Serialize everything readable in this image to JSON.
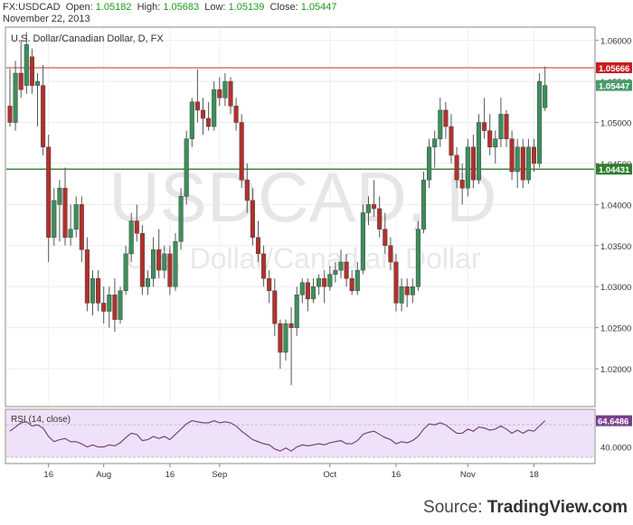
{
  "header": {
    "symbol": "FX:USDCAD",
    "open_label": "Open:",
    "open": "1.05182",
    "high_label": "High:",
    "high": "1.05683",
    "low_label": "Low:",
    "low": "1.05139",
    "close_label": "Close:",
    "close": "1.05447",
    "date": "November 22, 2013"
  },
  "source": {
    "prefix": "Source: ",
    "name": "TradingView.com"
  },
  "colors": {
    "up": "#3c8f5a",
    "down": "#b3312c",
    "wick": "#555555",
    "resistance": "#d9534f",
    "support": "#2f7d2f",
    "rsi_line": "#6a3a7a",
    "rsi_bg": "#efe1f7"
  },
  "chart_data": {
    "type": "candlestick",
    "title": "U.S. Dollar/Canadian Dollar, D, FX",
    "watermark_symbol": "USDCAD, D",
    "watermark_name": "U.S. Dollar/Canadian Dollar",
    "y_ticks": [
      "1.06000",
      "1.05500",
      "1.05000",
      "1.04500",
      "1.04000",
      "1.03500",
      "1.03000",
      "1.02500",
      "1.02000"
    ],
    "ylim": [
      1.0155,
      1.0615
    ],
    "x_tick_labels": [
      "16",
      "Aug",
      "16",
      "Sep",
      "Oct",
      "16",
      "Nov",
      "18"
    ],
    "x_tick_index": [
      7,
      17,
      29,
      38,
      58,
      70,
      83,
      95
    ],
    "horizontal_lines": [
      {
        "value": 1.05666,
        "label": "1.05666",
        "role": "resistance"
      },
      {
        "value": 1.04431,
        "label": "1.04431",
        "role": "support"
      }
    ],
    "last_price_label": "1.05447",
    "candles": [
      [
        1.052,
        1.0565,
        1.0495,
        1.05
      ],
      [
        1.05,
        1.0575,
        1.049,
        1.056
      ],
      [
        1.056,
        1.06,
        1.053,
        1.054
      ],
      [
        1.0545,
        1.061,
        1.0535,
        1.0595
      ],
      [
        1.058,
        1.059,
        1.0535,
        1.0545
      ],
      [
        1.0545,
        1.056,
        1.0495,
        1.055
      ],
      [
        1.0545,
        1.057,
        1.046,
        1.047
      ],
      [
        1.047,
        1.0485,
        1.033,
        1.036
      ],
      [
        1.036,
        1.042,
        1.035,
        1.0405
      ],
      [
        1.04,
        1.043,
        1.0355,
        1.042
      ],
      [
        1.042,
        1.0445,
        1.035,
        1.036
      ],
      [
        1.036,
        1.04,
        1.035,
        1.037
      ],
      [
        1.037,
        1.041,
        1.036,
        1.04
      ],
      [
        1.04,
        1.041,
        1.033,
        1.0345
      ],
      [
        1.0345,
        1.036,
        1.027,
        1.028
      ],
      [
        1.028,
        1.032,
        1.0265,
        1.031
      ],
      [
        1.031,
        1.032,
        1.027,
        1.028
      ],
      [
        1.028,
        1.03,
        1.0255,
        1.027
      ],
      [
        1.027,
        1.03,
        1.025,
        1.029
      ],
      [
        1.029,
        1.031,
        1.0245,
        1.026
      ],
      [
        1.026,
        1.03,
        1.0255,
        1.0295
      ],
      [
        1.0295,
        1.035,
        1.029,
        1.034
      ],
      [
        1.034,
        1.039,
        1.033,
        1.038
      ],
      [
        1.038,
        1.04,
        1.0355,
        1.0365
      ],
      [
        1.0365,
        1.0375,
        1.029,
        1.03
      ],
      [
        1.03,
        1.032,
        1.029,
        1.031
      ],
      [
        1.031,
        1.036,
        1.03,
        1.0345
      ],
      [
        1.0345,
        1.037,
        1.031,
        1.032
      ],
      [
        1.032,
        1.035,
        1.031,
        1.034
      ],
      [
        1.034,
        1.035,
        1.029,
        1.03
      ],
      [
        1.03,
        1.0365,
        1.0295,
        1.0355
      ],
      [
        1.0355,
        1.042,
        1.0345,
        1.041
      ],
      [
        1.041,
        1.049,
        1.04,
        1.048
      ],
      [
        1.048,
        1.053,
        1.047,
        1.0525
      ],
      [
        1.0525,
        1.0565,
        1.05,
        1.0515
      ],
      [
        1.0515,
        1.053,
        1.0485,
        1.0505
      ],
      [
        1.0505,
        1.0525,
        1.049,
        1.0495
      ],
      [
        1.0495,
        1.055,
        1.049,
        1.054
      ],
      [
        1.054,
        1.0555,
        1.052,
        1.053
      ],
      [
        1.053,
        1.056,
        1.052,
        1.055
      ],
      [
        1.055,
        1.0555,
        1.051,
        1.052
      ],
      [
        1.052,
        1.053,
        1.049,
        1.05
      ],
      [
        1.05,
        1.051,
        1.042,
        1.043
      ],
      [
        1.043,
        1.045,
        1.039,
        1.0405
      ],
      [
        1.0405,
        1.042,
        1.035,
        1.036
      ],
      [
        1.036,
        1.038,
        1.033,
        1.034
      ],
      [
        1.034,
        1.035,
        1.03,
        1.031
      ],
      [
        1.031,
        1.032,
        1.028,
        1.0295
      ],
      [
        1.0295,
        1.031,
        1.024,
        1.0255
      ],
      [
        1.0255,
        1.026,
        1.02,
        1.022
      ],
      [
        1.022,
        1.026,
        1.021,
        1.0255
      ],
      [
        1.0255,
        1.0275,
        1.018,
        1.025
      ],
      [
        1.025,
        1.03,
        1.024,
        1.029
      ],
      [
        1.029,
        1.031,
        1.028,
        1.0305
      ],
      [
        1.0305,
        1.031,
        1.027,
        1.0285
      ],
      [
        1.0285,
        1.031,
        1.028,
        1.03
      ],
      [
        1.03,
        1.0315,
        1.029,
        1.031
      ],
      [
        1.031,
        1.032,
        1.028,
        1.03
      ],
      [
        1.03,
        1.0325,
        1.0295,
        1.0315
      ],
      [
        1.0315,
        1.033,
        1.0305,
        1.032
      ],
      [
        1.032,
        1.0345,
        1.031,
        1.033
      ],
      [
        1.033,
        1.034,
        1.03,
        1.031
      ],
      [
        1.031,
        1.032,
        1.029,
        1.0295
      ],
      [
        1.0295,
        1.033,
        1.029,
        1.032
      ],
      [
        1.032,
        1.04,
        1.0315,
        1.039
      ],
      [
        1.039,
        1.041,
        1.0375,
        1.04
      ],
      [
        1.04,
        1.043,
        1.0385,
        1.0395
      ],
      [
        1.0395,
        1.041,
        1.036,
        1.037
      ],
      [
        1.037,
        1.039,
        1.034,
        1.035
      ],
      [
        1.035,
        1.036,
        1.032,
        1.033
      ],
      [
        1.033,
        1.034,
        1.027,
        1.028
      ],
      [
        1.028,
        1.031,
        1.027,
        1.03
      ],
      [
        1.03,
        1.031,
        1.0275,
        1.029
      ],
      [
        1.029,
        1.031,
        1.028,
        1.03
      ],
      [
        1.03,
        1.038,
        1.0295,
        1.037
      ],
      [
        1.037,
        1.044,
        1.0365,
        1.043
      ],
      [
        1.043,
        1.048,
        1.042,
        1.047
      ],
      [
        1.047,
        1.049,
        1.0445,
        1.048
      ],
      [
        1.048,
        1.053,
        1.047,
        1.0515
      ],
      [
        1.0515,
        1.0525,
        1.048,
        1.0495
      ],
      [
        1.0495,
        1.051,
        1.045,
        1.046
      ],
      [
        1.046,
        1.047,
        1.042,
        1.043
      ],
      [
        1.043,
        1.045,
        1.04,
        1.042
      ],
      [
        1.042,
        1.048,
        1.041,
        1.047
      ],
      [
        1.047,
        1.0485,
        1.042,
        1.043
      ],
      [
        1.043,
        1.051,
        1.0425,
        1.05
      ],
      [
        1.05,
        1.053,
        1.048,
        1.049
      ],
      [
        1.049,
        1.051,
        1.046,
        1.047
      ],
      [
        1.047,
        1.049,
        1.045,
        1.048
      ],
      [
        1.048,
        1.053,
        1.047,
        1.051
      ],
      [
        1.051,
        1.0515,
        1.047,
        1.048
      ],
      [
        1.048,
        1.049,
        1.043,
        1.044
      ],
      [
        1.044,
        1.048,
        1.042,
        1.047
      ],
      [
        1.047,
        1.048,
        1.042,
        1.043
      ],
      [
        1.043,
        1.048,
        1.0425,
        1.047
      ],
      [
        1.047,
        1.048,
        1.044,
        1.045
      ],
      [
        1.045,
        1.056,
        1.0445,
        1.055
      ],
      [
        1.0518,
        1.0568,
        1.0514,
        1.0545
      ]
    ],
    "rsi": {
      "label": "RSI (14, close)",
      "last_value": "64.6486",
      "y_ticks": [
        "40.0000"
      ],
      "ylim": [
        25,
        75
      ],
      "values": [
        55,
        59,
        63,
        64,
        60,
        61,
        58,
        50,
        45,
        47,
        48,
        45,
        45,
        43,
        40,
        42,
        40,
        40,
        42,
        41,
        44,
        49,
        53,
        52,
        46,
        47,
        50,
        48,
        50,
        47,
        52,
        57,
        62,
        65,
        64,
        63,
        63,
        65,
        63,
        64,
        63,
        60,
        55,
        51,
        47,
        45,
        43,
        42,
        38,
        36,
        39,
        36,
        40,
        42,
        41,
        42,
        43,
        42,
        44,
        45,
        46,
        43,
        43,
        46,
        52,
        54,
        55,
        52,
        49,
        47,
        43,
        45,
        44,
        46,
        50,
        57,
        62,
        61,
        63,
        61,
        57,
        53,
        53,
        57,
        55,
        59,
        58,
        56,
        57,
        60,
        57,
        53,
        56,
        53,
        56,
        55,
        60,
        65
      ]
    }
  }
}
